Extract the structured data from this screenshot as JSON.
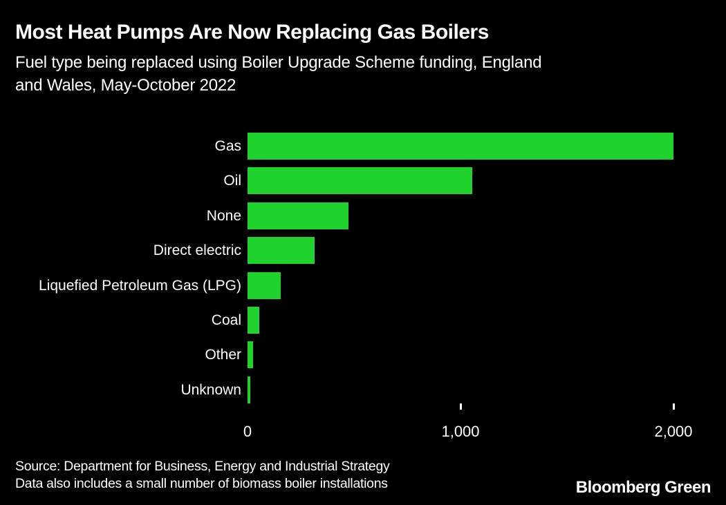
{
  "page": {
    "background_color": "#000000",
    "text_color": "#ffffff"
  },
  "header": {
    "title": "Most Heat Pumps Are Now Replacing Gas Boilers",
    "subtitle": "Fuel type being replaced using Boiler Upgrade Scheme funding, England\nand Wales, May-October 2022"
  },
  "chart_data": {
    "type": "bar",
    "orientation": "horizontal",
    "categories": [
      "Gas",
      "Oil",
      "None",
      "Direct electric",
      "Liquefied Petroleum Gas (LPG)",
      "Coal",
      "Other",
      "Unknown"
    ],
    "values": [
      2000,
      1055,
      474,
      315,
      157,
      55,
      26,
      13
    ],
    "xlim": [
      0,
      2000
    ],
    "x_ticks": [
      0,
      1000,
      2000
    ],
    "x_tick_labels": [
      "0",
      "1,000",
      "2,000"
    ],
    "bar_color": "#1fd32c",
    "grid": false,
    "legend": false,
    "title": "Most Heat Pumps Are Now Replacing Gas Boilers",
    "subtitle": "Fuel type being replaced using Boiler Upgrade Scheme funding, England and Wales, May-October 2022",
    "xlabel": "",
    "ylabel": ""
  },
  "footer": {
    "source_line1": "Source: Department for Business, Energy and Industrial Strategy",
    "source_line2": "Data also includes a small number of biomass boiler installations",
    "brand": "Bloomberg Green"
  }
}
